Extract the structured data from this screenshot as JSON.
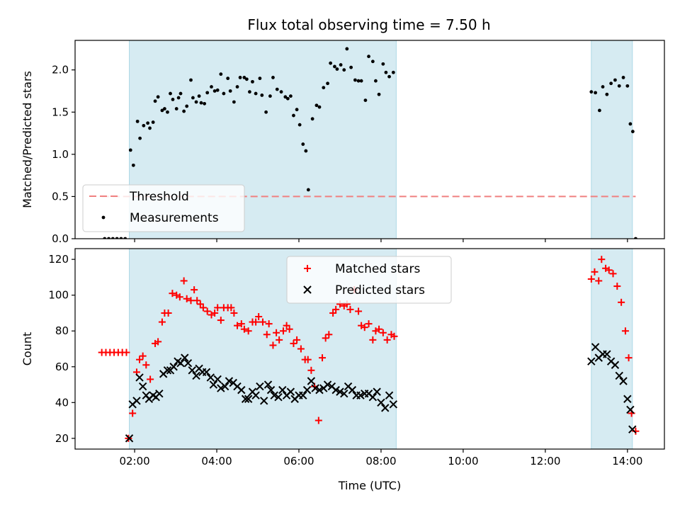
{
  "chart_data": [
    {
      "type": "scatter",
      "title": "Flux total observing time = 7.50 h",
      "xlabel": "",
      "ylabel": "Matched/Predicted stars",
      "xlim": [
        0.55,
        14.9
      ],
      "ylim": [
        0,
        2.35
      ],
      "yticks": [
        0,
        0.5,
        1.0,
        1.5,
        2.0
      ],
      "ytick_labels": [
        "0.0",
        "0.5",
        "1.0",
        "1.5",
        "2.0"
      ],
      "shaded_intervals": [
        [
          1.87,
          8.37
        ],
        [
          13.12,
          14.12
        ]
      ],
      "shade_color": "#add8e6",
      "legend_position": "lower-left",
      "series": [
        {
          "name": "Threshold",
          "kind": "line",
          "color": "#f08080",
          "x": [
            1.2,
            14.2
          ],
          "y": [
            0.5,
            0.5
          ]
        },
        {
          "name": "Measurements",
          "kind": "dots",
          "color": "#000000",
          "x": [
            1.27,
            1.37,
            1.47,
            1.57,
            1.67,
            1.77,
            1.9,
            1.97,
            2.07,
            2.13,
            2.22,
            2.32,
            2.37,
            2.45,
            2.5,
            2.57,
            2.67,
            2.73,
            2.8,
            2.87,
            2.93,
            3.02,
            3.07,
            3.12,
            3.2,
            3.27,
            3.37,
            3.42,
            3.5,
            3.57,
            3.62,
            3.7,
            3.77,
            3.87,
            3.95,
            4.02,
            4.1,
            4.17,
            4.27,
            4.33,
            4.42,
            4.5,
            4.57,
            4.67,
            4.73,
            4.8,
            4.87,
            4.95,
            5.05,
            5.1,
            5.2,
            5.3,
            5.37,
            5.47,
            5.57,
            5.67,
            5.73,
            5.8,
            5.87,
            5.95,
            6.02,
            6.1,
            6.17,
            6.23,
            6.33,
            6.43,
            6.5,
            6.6,
            6.7,
            6.77,
            6.87,
            6.93,
            7.02,
            7.1,
            7.17,
            7.27,
            7.37,
            7.45,
            7.52,
            7.62,
            7.7,
            7.8,
            7.87,
            7.95,
            8.05,
            8.12,
            8.2,
            8.3,
            13.12,
            13.22,
            13.32,
            13.4,
            13.5,
            13.6,
            13.7,
            13.8,
            13.9,
            14.0,
            14.07,
            14.13,
            14.2
          ],
          "y": [
            0,
            0,
            0,
            0,
            0,
            0,
            1.05,
            0.87,
            1.39,
            1.19,
            1.34,
            1.37,
            1.31,
            1.38,
            1.63,
            1.68,
            1.52,
            1.54,
            1.5,
            1.72,
            1.65,
            1.54,
            1.67,
            1.72,
            1.51,
            1.57,
            1.88,
            1.67,
            1.62,
            1.69,
            1.61,
            1.6,
            1.73,
            1.8,
            1.75,
            1.76,
            1.95,
            1.72,
            1.9,
            1.75,
            1.62,
            1.8,
            1.91,
            1.91,
            1.89,
            1.74,
            1.86,
            1.72,
            1.9,
            1.7,
            1.5,
            1.69,
            1.91,
            1.77,
            1.74,
            1.68,
            1.66,
            1.69,
            1.46,
            1.53,
            1.35,
            1.12,
            1.04,
            0.58,
            1.42,
            1.58,
            1.56,
            1.79,
            1.84,
            2.08,
            2.04,
            2.01,
            2.06,
            2.0,
            2.25,
            2.03,
            1.88,
            1.87,
            1.87,
            1.64,
            2.16,
            2.1,
            1.87,
            1.71,
            2.07,
            1.97,
            1.92,
            1.97,
            1.74,
            1.73,
            1.52,
            1.8,
            1.71,
            1.84,
            1.88,
            1.81,
            1.91,
            1.81,
            1.36,
            1.27,
            0.0
          ]
        }
      ]
    },
    {
      "type": "scatter",
      "title": "",
      "xlabel": "Time (UTC)",
      "ylabel": "Count",
      "xlim": [
        0.55,
        14.9
      ],
      "ylim": [
        14,
        126
      ],
      "xticks": [
        2,
        4,
        6,
        8,
        10,
        12,
        14
      ],
      "xtick_labels": [
        "02:00",
        "04:00",
        "06:00",
        "08:00",
        "10:00",
        "12:00",
        "14:00"
      ],
      "yticks": [
        20,
        40,
        60,
        80,
        100,
        120
      ],
      "ytick_labels": [
        "20",
        "40",
        "60",
        "80",
        "100",
        "120"
      ],
      "shaded_intervals": [
        [
          1.87,
          8.37
        ],
        [
          13.12,
          14.12
        ]
      ],
      "shade_color": "#add8e6",
      "legend_position": "upper-center",
      "series": [
        {
          "name": "Matched stars",
          "kind": "plus",
          "color": "#ff0000",
          "x": [
            1.2,
            1.3,
            1.4,
            1.5,
            1.6,
            1.7,
            1.8,
            1.85,
            1.95,
            2.05,
            2.12,
            2.2,
            2.28,
            2.38,
            2.5,
            2.57,
            2.67,
            2.73,
            2.82,
            2.92,
            3.02,
            3.1,
            3.2,
            3.27,
            3.37,
            3.45,
            3.52,
            3.6,
            3.67,
            3.77,
            3.87,
            3.95,
            4.02,
            4.1,
            4.17,
            4.27,
            4.35,
            4.42,
            4.5,
            4.6,
            4.67,
            4.77,
            4.87,
            4.95,
            5.02,
            5.12,
            5.22,
            5.27,
            5.37,
            5.45,
            5.52,
            5.62,
            5.7,
            5.77,
            5.87,
            5.95,
            6.05,
            6.15,
            6.22,
            6.3,
            6.38,
            6.48,
            6.57,
            6.65,
            6.73,
            6.83,
            6.9,
            7.0,
            7.1,
            7.17,
            7.25,
            7.35,
            7.45,
            7.52,
            7.6,
            7.7,
            7.8,
            7.87,
            7.95,
            8.05,
            8.15,
            8.25,
            8.32,
            13.12,
            13.2,
            13.3,
            13.37,
            13.47,
            13.55,
            13.65,
            13.75,
            13.85,
            13.95,
            14.03,
            14.1,
            14.2
          ],
          "y": [
            68,
            68,
            68,
            68,
            68,
            68,
            68,
            20,
            34,
            57,
            64,
            66,
            61,
            53,
            73,
            74,
            85,
            90,
            90,
            101,
            100,
            99,
            108,
            98,
            97,
            103,
            97,
            95,
            93,
            91,
            89,
            90,
            93,
            86,
            93,
            93,
            93,
            90,
            83,
            84,
            81,
            80,
            85,
            85,
            88,
            85,
            78,
            84,
            72,
            79,
            75,
            80,
            83,
            81,
            73,
            75,
            70,
            64,
            64,
            58,
            49,
            30,
            65,
            76,
            78,
            90,
            92,
            95,
            94,
            95,
            92,
            103,
            91,
            83,
            82,
            84,
            75,
            80,
            81,
            79,
            75,
            78,
            77,
            109,
            113,
            108,
            120,
            115,
            114,
            112,
            105,
            96,
            80,
            65,
            34,
            24
          ]
        },
        {
          "name": "Predicted stars",
          "kind": "x",
          "color": "#000000",
          "x": [
            1.87,
            1.95,
            2.05,
            2.12,
            2.2,
            2.28,
            2.35,
            2.45,
            2.52,
            2.6,
            2.7,
            2.8,
            2.87,
            2.95,
            3.05,
            3.12,
            3.22,
            3.3,
            3.4,
            3.5,
            3.57,
            3.65,
            3.75,
            3.85,
            3.92,
            4.02,
            4.1,
            4.2,
            4.3,
            4.4,
            4.5,
            4.6,
            4.7,
            4.77,
            4.87,
            4.95,
            5.05,
            5.15,
            5.25,
            5.32,
            5.4,
            5.5,
            5.6,
            5.7,
            5.8,
            5.9,
            6.0,
            6.1,
            6.2,
            6.3,
            6.4,
            6.5,
            6.6,
            6.7,
            6.8,
            6.9,
            7.0,
            7.1,
            7.2,
            7.3,
            7.4,
            7.5,
            7.6,
            7.7,
            7.8,
            7.9,
            8.0,
            8.1,
            8.2,
            8.3,
            13.12,
            13.22,
            13.3,
            13.4,
            13.5,
            13.6,
            13.7,
            13.8,
            13.9,
            14.0,
            14.07,
            14.12
          ],
          "y": [
            20,
            39,
            41,
            54,
            49,
            44,
            42,
            44,
            43,
            45,
            56,
            58,
            58,
            60,
            63,
            62,
            65,
            62,
            58,
            55,
            59,
            57,
            57,
            54,
            50,
            53,
            48,
            49,
            52,
            51,
            49,
            47,
            42,
            42,
            46,
            44,
            49,
            41,
            50,
            47,
            44,
            43,
            47,
            44,
            46,
            42,
            44,
            44,
            47,
            52,
            48,
            47,
            48,
            50,
            49,
            47,
            46,
            45,
            49,
            47,
            44,
            44,
            45,
            45,
            43,
            46,
            40,
            37,
            44,
            39,
            63,
            71,
            65,
            67,
            67,
            63,
            61,
            55,
            52,
            42,
            36,
            25
          ]
        }
      ]
    }
  ]
}
